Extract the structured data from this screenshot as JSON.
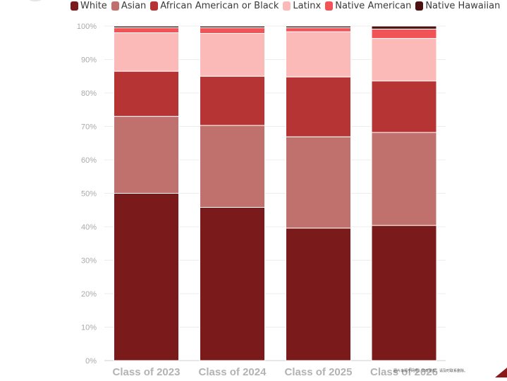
{
  "chart_data": {
    "type": "bar",
    "stacked": true,
    "normalized": true,
    "categories": [
      "Class of 2023",
      "Class of 2024",
      "Class of 2025",
      "Class of 2026"
    ],
    "series": [
      {
        "name": "White",
        "color": "#7a1a1a",
        "values": [
          50.0,
          45.8,
          39.6,
          40.4
        ]
      },
      {
        "name": "Asian",
        "color": "#c0706d",
        "values": [
          23.0,
          24.5,
          27.3,
          27.8
        ]
      },
      {
        "name": "African American or Black",
        "color": "#b63434",
        "values": [
          13.5,
          14.7,
          17.9,
          15.4
        ]
      },
      {
        "name": "Latinx",
        "color": "#fbb9b8",
        "values": [
          11.5,
          12.8,
          13.5,
          12.7
        ]
      },
      {
        "name": "Native American",
        "color": "#f05456",
        "values": [
          1.5,
          1.7,
          1.2,
          2.8
        ]
      },
      {
        "name": "Native Hawaiian",
        "color": "#4b1111",
        "values": [
          0.5,
          0.5,
          0.5,
          0.9
        ]
      }
    ],
    "ylim": [
      0,
      100
    ],
    "y_ticks": [
      "0%",
      "10%",
      "20%",
      "30%",
      "40%",
      "50%",
      "60%",
      "70%",
      "80%",
      "90%",
      "100%"
    ],
    "grid": true,
    "legend_position": "top",
    "watermark": "图片来源于网络，如有侵权，请及时联系删除。"
  }
}
